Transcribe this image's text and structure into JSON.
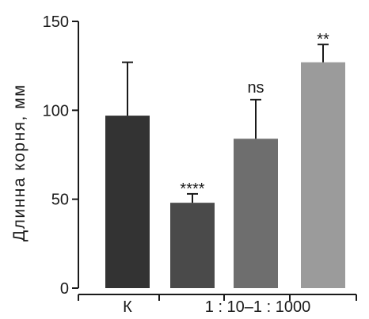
{
  "chart_data": {
    "type": "bar",
    "ylabel": "Длинна корня,  мм",
    "ylim": [
      0,
      150
    ],
    "yticks": [
      0,
      50,
      100,
      150
    ],
    "grid": false,
    "bars": [
      {
        "value": 97,
        "error": 30,
        "color": "#333333",
        "annotation": ""
      },
      {
        "value": 48,
        "error": 5,
        "color": "#4a4a4a",
        "annotation": "****"
      },
      {
        "value": 84,
        "error": 22,
        "color": "#6e6e6e",
        "annotation": "ns"
      },
      {
        "value": 127,
        "error": 10,
        "color": "#9b9b9b",
        "annotation": "**"
      }
    ],
    "x_groups": [
      {
        "label": "К",
        "bars": [
          0
        ]
      },
      {
        "label": "1 : 10–1 : 1000",
        "bars": [
          1,
          2,
          3
        ]
      }
    ]
  }
}
